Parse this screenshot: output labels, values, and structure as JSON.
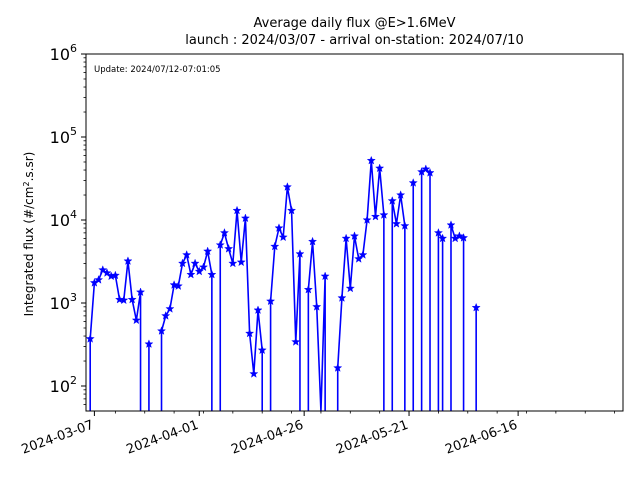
{
  "chart_data": {
    "type": "line",
    "title": "Average daily flux @E>1.6MeV",
    "subtitle": "launch : 2024/03/07 - arrival on-station: 2024/07/10",
    "annotation": "Update: 2024/07/12-07:01:05",
    "xlabel": "",
    "ylabel_parts": [
      "Integrated flux (#/cm",
      "2",
      ".s.sr)"
    ],
    "yscale": "log",
    "ylim": [
      50,
      1000000
    ],
    "xlim": [
      "2024-03-05",
      "2024-07-11"
    ],
    "x_ticks": [
      "2024-03-07",
      "2024-04-01",
      "2024-04-26",
      "2024-05-21",
      "2024-06-16"
    ],
    "y_ticks": [
      {
        "value": 100,
        "base": "10",
        "exp": "2"
      },
      {
        "value": 1000,
        "base": "10",
        "exp": "3"
      },
      {
        "value": 10000,
        "base": "10",
        "exp": "4"
      },
      {
        "value": 100000,
        "base": "10",
        "exp": "5"
      },
      {
        "value": 1000000,
        "base": "10",
        "exp": "6"
      }
    ],
    "grid": false,
    "series": [
      {
        "color": "#0000ff",
        "marker": "star",
        "points": [
          [
            "2024-03-06",
            370
          ],
          [
            "2024-03-07",
            1750
          ],
          [
            "2024-03-08",
            1900
          ],
          [
            "2024-03-09",
            2500
          ],
          [
            "2024-03-10",
            2300
          ],
          [
            "2024-03-11",
            2100
          ],
          [
            "2024-03-12",
            2150
          ],
          [
            "2024-03-13",
            1100
          ],
          [
            "2024-03-14",
            1080
          ],
          [
            "2024-03-15",
            3200
          ],
          [
            "2024-03-16",
            1100
          ],
          [
            "2024-03-17",
            620
          ],
          [
            "2024-03-18",
            1350
          ],
          [
            "2024-03-20",
            320
          ],
          [
            "2024-03-23",
            460
          ],
          [
            "2024-03-24",
            700
          ],
          [
            "2024-03-25",
            850
          ],
          [
            "2024-03-26",
            1650
          ],
          [
            "2024-03-27",
            1600
          ],
          [
            "2024-03-28",
            3000
          ],
          [
            "2024-03-29",
            3800
          ],
          [
            "2024-03-30",
            2200
          ],
          [
            "2024-03-31",
            3000
          ],
          [
            "2024-04-01",
            2400
          ],
          [
            "2024-04-02",
            2700
          ],
          [
            "2024-04-03",
            4200
          ],
          [
            "2024-04-04",
            2200
          ],
          [
            "2024-04-06",
            5000
          ],
          [
            "2024-04-07",
            7000
          ],
          [
            "2024-04-08",
            4500
          ],
          [
            "2024-04-09",
            3000
          ],
          [
            "2024-04-10",
            13000
          ],
          [
            "2024-04-11",
            3100
          ],
          [
            "2024-04-12",
            10500
          ],
          [
            "2024-04-13",
            430
          ],
          [
            "2024-04-14",
            140
          ],
          [
            "2024-04-15",
            820
          ],
          [
            "2024-04-16",
            270
          ],
          [
            "2024-04-18",
            1050
          ],
          [
            "2024-04-19",
            4800
          ],
          [
            "2024-04-20",
            8000
          ],
          [
            "2024-04-21",
            6200
          ],
          [
            "2024-04-22",
            25000
          ],
          [
            "2024-04-23",
            13000
          ],
          [
            "2024-04-24",
            340
          ],
          [
            "2024-04-25",
            3900
          ],
          [
            "2024-04-27",
            1450
          ],
          [
            "2024-04-28",
            5500
          ],
          [
            "2024-04-29",
            900
          ],
          [
            "2024-04-30",
            50
          ],
          [
            "2024-05-01",
            2100
          ],
          [
            "2024-05-04",
            165
          ],
          [
            "2024-05-05",
            1150
          ],
          [
            "2024-05-06",
            6000
          ],
          [
            "2024-05-07",
            1500
          ],
          [
            "2024-05-08",
            6400
          ],
          [
            "2024-05-09",
            3400
          ],
          [
            "2024-05-10",
            3800
          ],
          [
            "2024-05-11",
            10000
          ],
          [
            "2024-05-12",
            52000
          ],
          [
            "2024-05-13",
            11000
          ],
          [
            "2024-05-14",
            42000
          ],
          [
            "2024-05-15",
            11500
          ],
          [
            "2024-05-17",
            17000
          ],
          [
            "2024-05-18",
            9000
          ],
          [
            "2024-05-19",
            20000
          ],
          [
            "2024-05-20",
            8500
          ],
          [
            "2024-05-22",
            28000
          ],
          [
            "2024-05-24",
            38000
          ],
          [
            "2024-05-25",
            41000
          ],
          [
            "2024-05-26",
            37000
          ],
          [
            "2024-05-28",
            7000
          ],
          [
            "2024-05-29",
            6000
          ],
          [
            "2024-05-31",
            8700
          ],
          [
            "2024-06-01",
            6000
          ],
          [
            "2024-06-02",
            6400
          ],
          [
            "2024-06-03",
            6100
          ],
          [
            "2024-06-06",
            880
          ]
        ]
      }
    ]
  }
}
